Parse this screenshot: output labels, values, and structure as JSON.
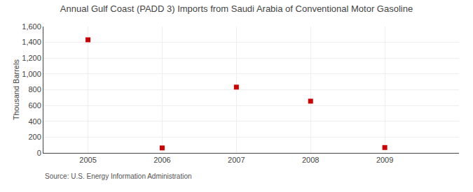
{
  "chart_data": {
    "type": "scatter",
    "title": "Annual Gulf Coast (PADD 3) Imports from Saudi Arabia of Conventional Motor Gasoline",
    "ylabel": "Thousand Barrels",
    "annotations": [
      "Source: U.S. Energy Information Administration"
    ],
    "x": [
      2005,
      2006,
      2007,
      2008,
      2009
    ],
    "values": [
      1432,
      63,
      833,
      655,
      68
    ],
    "color": "#cc0000",
    "marker": "square",
    "xlim": [
      2004.4,
      2010.0
    ],
    "xticks": [
      2005,
      2006,
      2007,
      2008,
      2009
    ],
    "ylim": [
      0,
      1600
    ],
    "yticks": [
      0,
      200,
      400,
      600,
      800,
      {
        "value": 1000,
        "label": "1,000"
      },
      {
        "value": 1200,
        "label": "1,200"
      },
      {
        "value": 1400,
        "label": "1,400"
      },
      {
        "value": 1600,
        "label": "1,600"
      }
    ],
    "grid": true
  }
}
